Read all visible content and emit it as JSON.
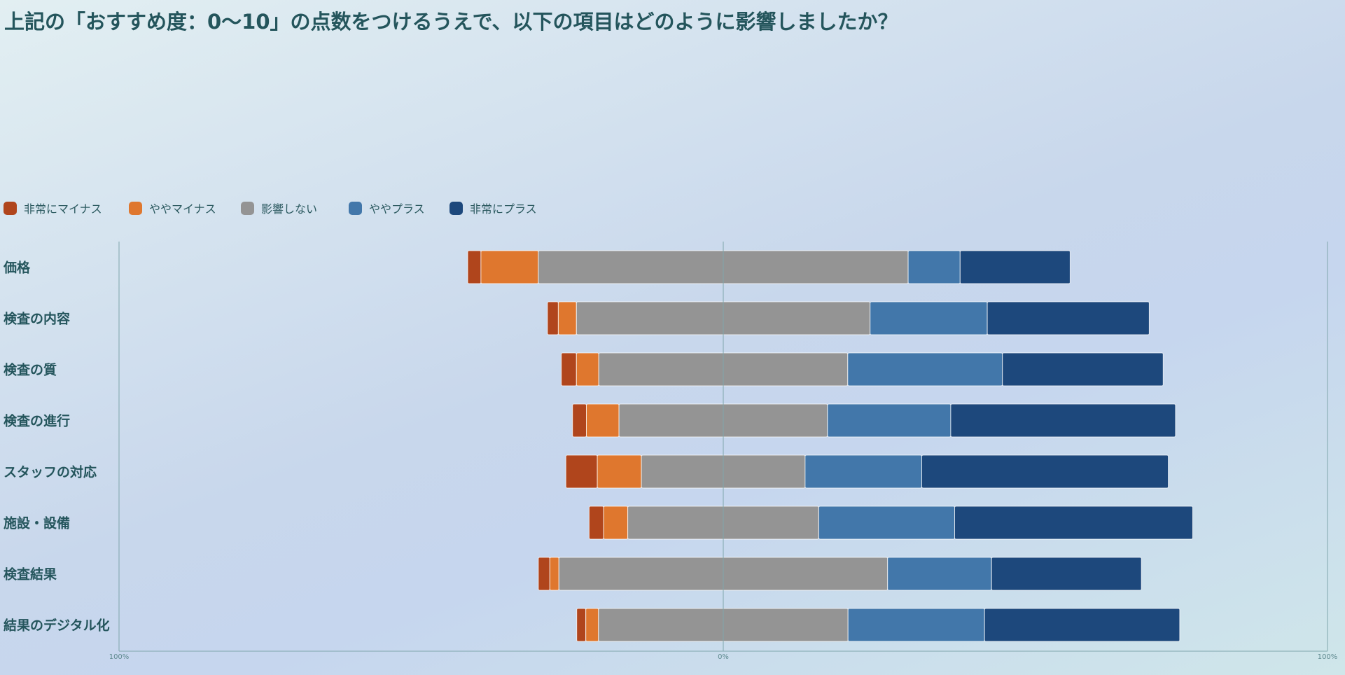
{
  "title": "上記の「おすすめ度：0〜10」の点数をつけるうえで、以下の項目はどのように影響しましたか？",
  "legend": [
    {
      "label": "非常にマイナス",
      "color": "#b0451c"
    },
    {
      "label": "ややマイナス",
      "color": "#df772e"
    },
    {
      "label": "影響しない",
      "color": "#949494"
    },
    {
      "label": "ややプラス",
      "color": "#4277aa"
    },
    {
      "label": "非常にプラス",
      "color": "#1d487c"
    }
  ],
  "chart_data": {
    "type": "bar",
    "orientation": "horizontal",
    "stacking": "diverging",
    "categories": [
      "価格",
      "検査の内容",
      "検査の質",
      "検査の進行",
      "スタッフの対応",
      "施設・設備",
      "検査結果",
      "結果のデジタル化"
    ],
    "series": [
      {
        "name": "非常にマイナス",
        "values": [
          2.2,
          1.8,
          2.5,
          2.3,
          5.2,
          2.4,
          1.9,
          1.5
        ]
      },
      {
        "name": "ややマイナス",
        "values": [
          9.5,
          3.0,
          3.7,
          5.4,
          7.3,
          4.0,
          1.5,
          2.1
        ]
      },
      {
        "name": "影響しない",
        "values": [
          61.2,
          48.6,
          41.2,
          34.5,
          27.1,
          31.6,
          54.4,
          41.3
        ]
      },
      {
        "name": "ややプラス",
        "values": [
          8.6,
          19.4,
          25.6,
          20.4,
          19.3,
          22.5,
          17.2,
          22.6
        ]
      },
      {
        "name": "非常にプラス",
        "values": [
          18.2,
          26.8,
          26.6,
          37.2,
          40.8,
          39.4,
          24.8,
          32.3
        ]
      }
    ],
    "xlim": [
      -100,
      100
    ],
    "ticks": [
      "100%",
      "0%",
      "100%"
    ],
    "grid": false,
    "legend_position": "top-left"
  }
}
